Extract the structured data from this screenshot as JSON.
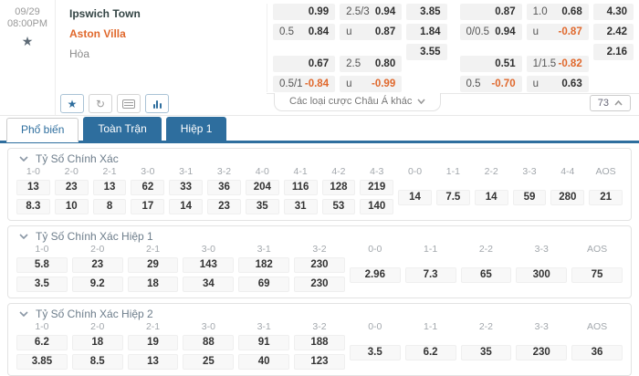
{
  "match": {
    "date": "09/29",
    "time": "08:00PM",
    "home": "Ipswich Town",
    "away": "Aston Villa",
    "draw": "Hòa"
  },
  "odds": {
    "groups": [
      {
        "hdp": {
          "b1": [
            [
              "",
              "0.99"
            ],
            [
              "0.5",
              "0.84"
            ]
          ],
          "b2": [
            [
              "",
              "0.67"
            ],
            [
              "0.5/1",
              "-0.84"
            ]
          ]
        },
        "ou": {
          "b1": [
            [
              "2.5/3",
              "0.94"
            ],
            [
              "u",
              "0.87"
            ]
          ],
          "b2": [
            [
              "2.5",
              "0.80"
            ],
            [
              "u",
              "-0.99"
            ]
          ]
        },
        "x12": [
          "3.85",
          "1.84",
          "3.55"
        ]
      },
      {
        "hdp": {
          "b1": [
            [
              "",
              "0.87"
            ],
            [
              "0/0.5",
              "0.94"
            ]
          ],
          "b2": [
            [
              "",
              "0.51"
            ],
            [
              "0.5",
              "-0.70"
            ]
          ]
        },
        "ou": {
          "b1": [
            [
              "1.0",
              "0.68"
            ],
            [
              "u",
              "-0.87"
            ]
          ],
          "b2": [
            [
              "1/1.5",
              "-0.82"
            ],
            [
              "u",
              "0.63"
            ]
          ]
        },
        "x12": [
          "4.30",
          "2.42",
          "2.16"
        ]
      }
    ]
  },
  "toolbar": {
    "more_bets": "Các loại cược Châu Á khác",
    "market_count": "73"
  },
  "tabs": [
    {
      "label": "Phổ biến"
    },
    {
      "label": "Toàn Trận"
    },
    {
      "label": "Hiệp 1"
    }
  ],
  "sections": [
    {
      "title": "Tỷ Số Chính Xác",
      "cols": [
        "1-0",
        "2-0",
        "2-1",
        "3-0",
        "3-1",
        "3-2",
        "4-0",
        "4-1",
        "4-2",
        "4-3"
      ],
      "row1": [
        "13",
        "23",
        "13",
        "62",
        "33",
        "36",
        "204",
        "116",
        "128",
        "219"
      ],
      "row2": [
        "8.3",
        "10",
        "8",
        "17",
        "14",
        "23",
        "35",
        "31",
        "53",
        "140"
      ],
      "draw_cols": [
        "0-0",
        "1-1",
        "2-2",
        "3-3",
        "4-4",
        "AOS"
      ],
      "draw_vals": [
        "14",
        "7.5",
        "14",
        "59",
        "280",
        "21"
      ]
    },
    {
      "title": "Tỷ Số Chính Xác Hiệp 1",
      "cols": [
        "1-0",
        "2-0",
        "2-1",
        "3-0",
        "3-1",
        "3-2"
      ],
      "row1": [
        "5.8",
        "23",
        "29",
        "143",
        "182",
        "230"
      ],
      "row2": [
        "3.5",
        "9.2",
        "18",
        "34",
        "69",
        "230"
      ],
      "draw_cols": [
        "0-0",
        "1-1",
        "2-2",
        "3-3",
        "AOS"
      ],
      "draw_vals": [
        "2.96",
        "7.3",
        "65",
        "300",
        "75"
      ]
    },
    {
      "title": "Tỷ Số Chính Xác Hiệp 2",
      "cols": [
        "1-0",
        "2-0",
        "2-1",
        "3-0",
        "3-1",
        "3-2"
      ],
      "row1": [
        "6.2",
        "18",
        "19",
        "88",
        "91",
        "188"
      ],
      "row2": [
        "3.85",
        "8.5",
        "13",
        "25",
        "40",
        "123"
      ],
      "draw_cols": [
        "0-0",
        "1-1",
        "2-2",
        "3-3",
        "AOS"
      ],
      "draw_vals": [
        "3.5",
        "6.2",
        "35",
        "230",
        "36"
      ]
    }
  ],
  "colors": {
    "accent_blue": "#2e6e9e",
    "accent_orange": "#e0682c"
  }
}
